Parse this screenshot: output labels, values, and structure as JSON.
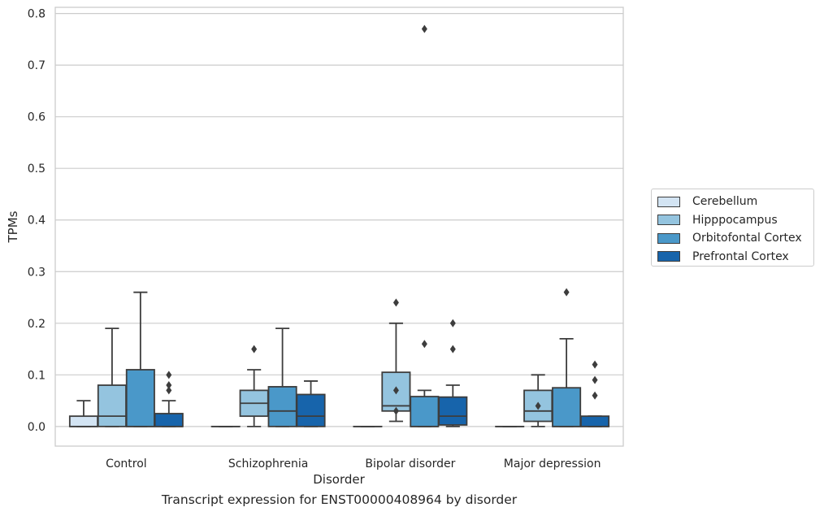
{
  "caption": "Transcript expression for ENST00000408964 by disorder",
  "chart_data": {
    "type": "box",
    "title": "",
    "xlabel": "Disorder",
    "ylabel": "TPMs",
    "ylim": [
      -0.038,
      0.812
    ],
    "yticks": [
      0.0,
      0.1,
      0.2,
      0.3,
      0.4,
      0.5,
      0.6,
      0.7,
      0.8
    ],
    "ytick_labels": [
      "0.0",
      "0.1",
      "0.2",
      "0.3",
      "0.4",
      "0.5",
      "0.6",
      "0.7",
      "0.8"
    ],
    "grid": "horizontal",
    "legend_position": "right",
    "categories": [
      "Control",
      "Schizophrenia",
      "Bipolar disorder",
      "Major depression"
    ],
    "series": [
      {
        "name": "Cerebellum",
        "color": "#d3e4f3",
        "boxes": [
          {
            "whislo": 0.0,
            "q1": 0.0,
            "med": 0.0,
            "q3": 0.02,
            "whishi": 0.05,
            "fliers": []
          },
          {
            "whislo": 0.0,
            "q1": 0.0,
            "med": 0.0,
            "q3": 0.0,
            "whishi": 0.0,
            "fliers": []
          },
          {
            "whislo": 0.0,
            "q1": 0.0,
            "med": 0.0,
            "q3": 0.0,
            "whishi": 0.0,
            "fliers": []
          },
          {
            "whislo": 0.0,
            "q1": 0.0,
            "med": 0.0,
            "q3": 0.0,
            "whishi": 0.0,
            "fliers": []
          }
        ]
      },
      {
        "name": "Hipppocampus",
        "color": "#94c4df",
        "boxes": [
          {
            "whislo": 0.0,
            "q1": 0.0,
            "med": 0.02,
            "q3": 0.08,
            "whishi": 0.19,
            "fliers": []
          },
          {
            "whislo": 0.0,
            "q1": 0.02,
            "med": 0.045,
            "q3": 0.07,
            "whishi": 0.11,
            "fliers": [
              0.15
            ]
          },
          {
            "whislo": 0.01,
            "q1": 0.03,
            "med": 0.04,
            "q3": 0.105,
            "whishi": 0.2,
            "fliers": [
              0.24,
              0.07,
              0.03
            ]
          },
          {
            "whislo": 0.0,
            "q1": 0.01,
            "med": 0.03,
            "q3": 0.07,
            "whishi": 0.1,
            "fliers": [
              0.04
            ]
          }
        ]
      },
      {
        "name": "Orbitofontal Cortex",
        "color": "#4a98c9",
        "boxes": [
          {
            "whislo": 0.0,
            "q1": 0.0,
            "med": 0.0,
            "q3": 0.11,
            "whishi": 0.26,
            "fliers": []
          },
          {
            "whislo": 0.0,
            "q1": 0.0,
            "med": 0.03,
            "q3": 0.077,
            "whishi": 0.19,
            "fliers": []
          },
          {
            "whislo": 0.0,
            "q1": 0.0,
            "med": 0.0,
            "q3": 0.058,
            "whishi": 0.07,
            "fliers": [
              0.77,
              0.16
            ]
          },
          {
            "whislo": 0.0,
            "q1": 0.0,
            "med": 0.0,
            "q3": 0.075,
            "whishi": 0.17,
            "fliers": [
              0.26
            ]
          }
        ]
      },
      {
        "name": "Prefrontal Cortex",
        "color": "#1764ab",
        "boxes": [
          {
            "whislo": 0.0,
            "q1": 0.0,
            "med": 0.0,
            "q3": 0.025,
            "whishi": 0.05,
            "fliers": [
              0.1,
              0.08,
              0.07
            ]
          },
          {
            "whislo": 0.0,
            "q1": 0.0,
            "med": 0.02,
            "q3": 0.062,
            "whishi": 0.088,
            "fliers": []
          },
          {
            "whislo": 0.0,
            "q1": 0.003,
            "med": 0.02,
            "q3": 0.057,
            "whishi": 0.08,
            "fliers": [
              0.2,
              0.15
            ]
          },
          {
            "whislo": 0.0,
            "q1": 0.0,
            "med": 0.0,
            "q3": 0.02,
            "whishi": 0.02,
            "fliers": [
              0.12,
              0.09,
              0.06
            ]
          }
        ]
      }
    ]
  }
}
